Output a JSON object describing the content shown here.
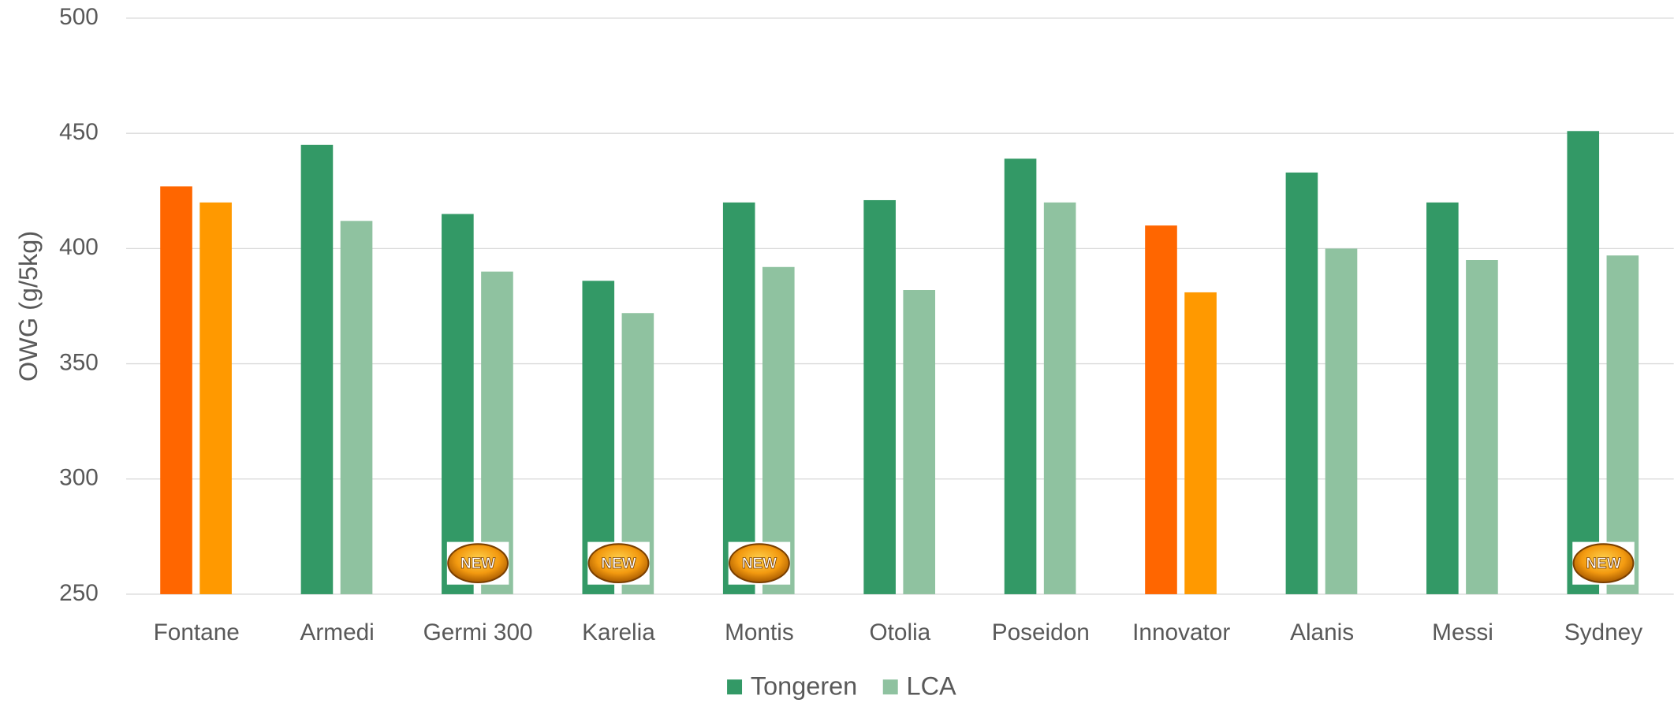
{
  "chart_data": {
    "type": "bar",
    "y_axis_label": "OWG (g/5kg)",
    "categories": [
      "Fontane",
      "Armedi",
      "Germi 300",
      "Karelia",
      "Montis",
      "Otolia",
      "Poseidon",
      "Innovator",
      "Alanis",
      "Messi",
      "Sydney"
    ],
    "series": [
      {
        "name": "Tongeren",
        "color": "#339966",
        "values": [
          427,
          445,
          415,
          386,
          420,
          421,
          439,
          410,
          433,
          420,
          451
        ],
        "point_colors": [
          "#ff6600",
          "#339966",
          "#339966",
          "#339966",
          "#339966",
          "#339966",
          "#339966",
          "#ff6600",
          "#339966",
          "#339966",
          "#339966"
        ]
      },
      {
        "name": "LCA",
        "color": "#8fc2a0",
        "values": [
          420,
          412,
          390,
          372,
          392,
          382,
          420,
          381,
          400,
          395,
          397
        ],
        "point_colors": [
          "#ff9900",
          "#8fc2a0",
          "#8fc2a0",
          "#8fc2a0",
          "#8fc2a0",
          "#8fc2a0",
          "#8fc2a0",
          "#ff9900",
          "#8fc2a0",
          "#8fc2a0",
          "#8fc2a0"
        ]
      }
    ],
    "badges": [
      {
        "label": "NEW",
        "category": "Germi 300"
      },
      {
        "label": "NEW",
        "category": "Karelia"
      },
      {
        "label": "NEW",
        "category": "Montis"
      },
      {
        "label": "NEW",
        "category": "Sydney"
      }
    ],
    "ylim": [
      250,
      500
    ],
    "yticks": [
      250,
      300,
      350,
      400,
      450,
      500
    ],
    "grid": true,
    "legend": "bottom"
  }
}
